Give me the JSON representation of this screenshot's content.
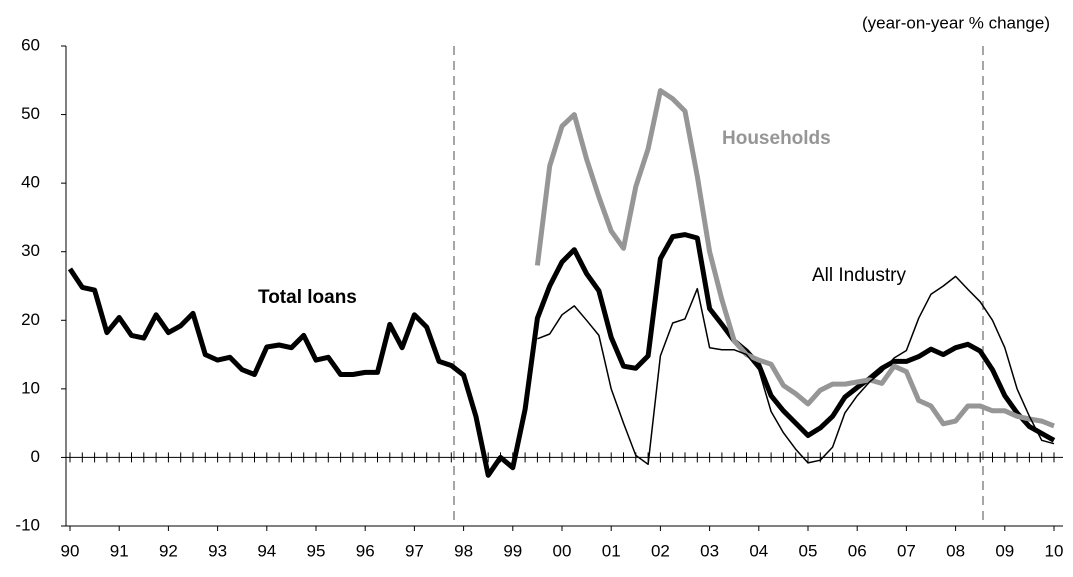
{
  "chart_data": {
    "type": "line",
    "unit_label": "(year-on-year % change)",
    "categories": [
      "90",
      null,
      null,
      null,
      "91",
      null,
      null,
      null,
      "92",
      null,
      null,
      null,
      "93",
      null,
      null,
      null,
      "94",
      null,
      null,
      null,
      "95",
      null,
      null,
      null,
      "96",
      null,
      null,
      null,
      "97",
      null,
      null,
      null,
      "98",
      null,
      null,
      null,
      "99",
      null,
      null,
      null,
      "00",
      null,
      null,
      null,
      "01",
      null,
      null,
      null,
      "02",
      null,
      null,
      null,
      "03",
      null,
      null,
      null,
      "04",
      null,
      null,
      null,
      "05",
      null,
      null,
      null,
      "06",
      null,
      null,
      null,
      "07",
      null,
      null,
      null,
      "08",
      null,
      null,
      null,
      "09",
      null,
      null,
      null,
      "10"
    ],
    "series": [
      {
        "name": "Total loans",
        "color": "#000000",
        "width": 5,
        "bold": true,
        "values": [
          27.5,
          24.8,
          24.4,
          18.2,
          20.4,
          17.8,
          17.4,
          20.8,
          18.2,
          19.2,
          21,
          15,
          14.2,
          14.6,
          12.8,
          12.1,
          16.1,
          16.4,
          16,
          17.8,
          14.2,
          14.6,
          12.1,
          12.1,
          12.4,
          12.4,
          19.4,
          16,
          20.8,
          19,
          14,
          13.4,
          12,
          6,
          -2.6,
          0,
          -1.5,
          7,
          20.3,
          25,
          28.5,
          30.3,
          26.8,
          24.3,
          17.5,
          13.3,
          13,
          14.8,
          29,
          32.2,
          32.5,
          32,
          21.7,
          19.4,
          17,
          15.5,
          13.5,
          9,
          6.8,
          5,
          3.2,
          4.3,
          6,
          8.8,
          10.2,
          11.5,
          13,
          14,
          14,
          14.7,
          15.8,
          15,
          16,
          16.5,
          15.5,
          12.8,
          9,
          6.5,
          4.5,
          3.5,
          2.5
        ]
      },
      {
        "name": "Households",
        "color": "#969696",
        "width": 5,
        "bold": true,
        "values": [
          null,
          null,
          null,
          null,
          null,
          null,
          null,
          null,
          null,
          null,
          null,
          null,
          null,
          null,
          null,
          null,
          null,
          null,
          null,
          null,
          null,
          null,
          null,
          null,
          null,
          null,
          null,
          null,
          null,
          null,
          null,
          null,
          null,
          null,
          null,
          null,
          null,
          null,
          28,
          42.5,
          48.3,
          50,
          43.5,
          38,
          33,
          30.5,
          39.5,
          45,
          53.5,
          52.3,
          50.5,
          41,
          30,
          23,
          17,
          15,
          14.2,
          13.6,
          10.5,
          9.3,
          7.8,
          9.8,
          10.7,
          10.7,
          11,
          11.3,
          10.8,
          13.3,
          12.5,
          8.3,
          7.5,
          4.9,
          5.3,
          7.5,
          7.5,
          6.8,
          6.8,
          6,
          5.6,
          5.3,
          4.6
        ]
      },
      {
        "name": "All Industry",
        "color": "#000000",
        "width": 1.5,
        "bold": false,
        "values": [
          null,
          null,
          null,
          null,
          null,
          null,
          null,
          null,
          null,
          null,
          null,
          null,
          null,
          null,
          null,
          null,
          null,
          null,
          null,
          null,
          null,
          null,
          null,
          null,
          null,
          null,
          null,
          null,
          null,
          null,
          null,
          null,
          null,
          null,
          null,
          null,
          null,
          null,
          17.3,
          18,
          20.8,
          22.1,
          20,
          17.8,
          10,
          5,
          0.3,
          -1,
          14.8,
          19.6,
          20.2,
          24.6,
          16,
          15.7,
          15.7,
          15,
          12.8,
          6.7,
          3.6,
          1.2,
          -0.8,
          -0.4,
          1.5,
          6.5,
          9,
          11,
          12.5,
          14.5,
          15.6,
          20.3,
          23.8,
          25,
          26.4,
          24.5,
          22.7,
          20,
          16,
          10,
          6,
          2.5,
          2
        ]
      }
    ],
    "ylim": [
      -10,
      60
    ],
    "yticks": [
      -10,
      0,
      10,
      20,
      30,
      40,
      50,
      60
    ]
  }
}
